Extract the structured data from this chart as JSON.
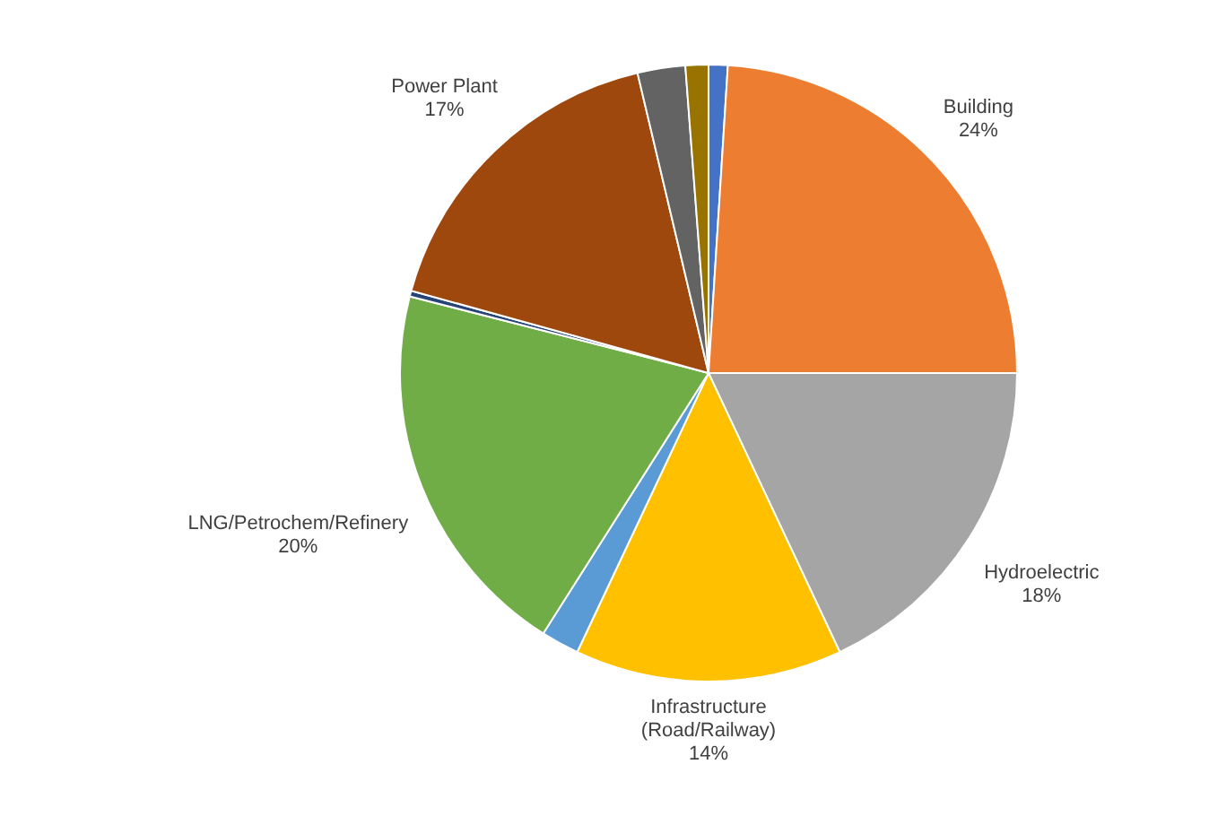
{
  "chart_data": {
    "type": "pie",
    "categories": [
      null,
      "Building",
      "Hydroelectric",
      "Infrastructure\n(Road/Railway)",
      null,
      "LNG/Petrochem/Refinery",
      null,
      "Power Plant",
      null,
      null
    ],
    "values": [
      1,
      24,
      18,
      14,
      2,
      20,
      0.3,
      17,
      2.5,
      1.2
    ],
    "value_labels": [
      null,
      "24%",
      "18%",
      "14%",
      null,
      "20%",
      null,
      "17%",
      null,
      null
    ],
    "colors": [
      "#4472c4",
      "#ed7d31",
      "#a5a5a5",
      "#ffc000",
      "#5b9bd5",
      "#70ad47",
      "#264478",
      "#9e480e",
      "#636363",
      "#997300"
    ]
  }
}
